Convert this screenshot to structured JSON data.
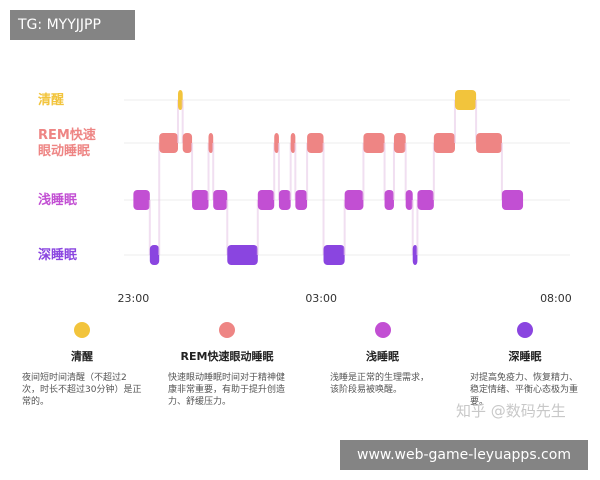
{
  "overlays": {
    "top_tag": "TG: MYYJJPP",
    "bottom_tag": "www.web-game-leyuapps.com",
    "watermark": "知乎 @数码先生"
  },
  "legend": [
    {
      "name": "清醒",
      "color": "#f2c43c",
      "desc": "夜间短时间清醒（不超过2次，时长不超过30分钟）是正常的。"
    },
    {
      "name": "REM快速眼动睡眠",
      "color": "#ee8584",
      "desc": "快速眼动睡眠时间对于精神健康非常重要，有助于提升创造力、舒缓压力。"
    },
    {
      "name": "浅睡眠",
      "color": "#c24fd3",
      "desc": "浅睡是正常的生理需求，该阶段易被唤醒。"
    },
    {
      "name": "深睡眠",
      "color": "#8a45e0",
      "desc": "对提高免疫力、恢复精力、稳定情绪、平衡心态极为重要。"
    }
  ],
  "chart_data": {
    "type": "hypnogram",
    "y_categories": [
      "清醒",
      "REM快速眼动睡眠",
      "浅睡眠",
      "深睡眠"
    ],
    "y_category_labels": [
      "清醒",
      "REM快速\n眼动睡眠",
      "浅睡眠",
      "深睡眠"
    ],
    "x_ticks": [
      "23:00",
      "03:00",
      "08:00"
    ],
    "x_tick_hours": [
      23,
      27,
      32
    ],
    "x_range_hours": [
      22.8,
      32.3
    ],
    "colors": {
      "清醒": "#f2c43c",
      "REM快速眼动睡眠": "#ee8584",
      "浅睡眠": "#c24fd3",
      "深睡眠": "#8a45e0"
    },
    "segments": [
      {
        "stage": "浅睡眠",
        "start": 23.0,
        "end": 23.35
      },
      {
        "stage": "深睡眠",
        "start": 23.35,
        "end": 23.55
      },
      {
        "stage": "REM快速眼动睡眠",
        "start": 23.55,
        "end": 23.95
      },
      {
        "stage": "清醒",
        "start": 23.95,
        "end": 24.05
      },
      {
        "stage": "REM快速眼动睡眠",
        "start": 24.05,
        "end": 24.25
      },
      {
        "stage": "浅睡眠",
        "start": 24.25,
        "end": 24.6
      },
      {
        "stage": "REM快速眼动睡眠",
        "start": 24.6,
        "end": 24.7
      },
      {
        "stage": "浅睡眠",
        "start": 24.7,
        "end": 25.0
      },
      {
        "stage": "深睡眠",
        "start": 25.0,
        "end": 25.65
      },
      {
        "stage": "浅睡眠",
        "start": 25.65,
        "end": 26.0
      },
      {
        "stage": "REM快速眼动睡眠",
        "start": 26.0,
        "end": 26.1
      },
      {
        "stage": "浅睡眠",
        "start": 26.1,
        "end": 26.35
      },
      {
        "stage": "REM快速眼动睡眠",
        "start": 26.35,
        "end": 26.45
      },
      {
        "stage": "浅睡眠",
        "start": 26.45,
        "end": 26.7
      },
      {
        "stage": "REM快速眼动睡眠",
        "start": 26.7,
        "end": 27.05
      },
      {
        "stage": "深睡眠",
        "start": 27.05,
        "end": 27.5
      },
      {
        "stage": "浅睡眠",
        "start": 27.5,
        "end": 27.9
      },
      {
        "stage": "REM快速眼动睡眠",
        "start": 27.9,
        "end": 28.35
      },
      {
        "stage": "浅睡眠",
        "start": 28.35,
        "end": 28.55
      },
      {
        "stage": "REM快速眼动睡眠",
        "start": 28.55,
        "end": 28.8
      },
      {
        "stage": "浅睡眠",
        "start": 28.8,
        "end": 28.95
      },
      {
        "stage": "深睡眠",
        "start": 28.95,
        "end": 29.05
      },
      {
        "stage": "浅睡眠",
        "start": 29.05,
        "end": 29.4
      },
      {
        "stage": "REM快速眼动睡眠",
        "start": 29.4,
        "end": 29.85
      },
      {
        "stage": "清醒",
        "start": 29.85,
        "end": 30.3
      },
      {
        "stage": "REM快速眼动睡眠",
        "start": 30.3,
        "end": 30.85
      },
      {
        "stage": "浅睡眠",
        "start": 30.85,
        "end": 31.3
      }
    ]
  }
}
